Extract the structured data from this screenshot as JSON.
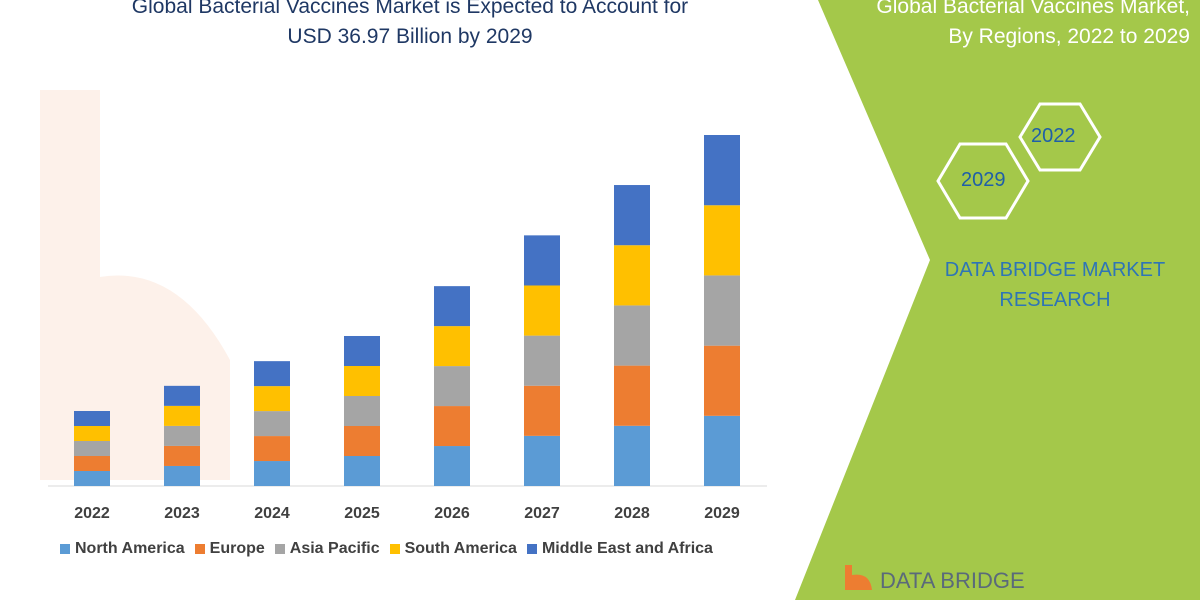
{
  "chart_data": {
    "type": "bar",
    "stacked": true,
    "title": "Global Bacterial Vaccines Market is Expected to Account for USD 36.97 Billion by 2029",
    "categories": [
      "2022",
      "2023",
      "2024",
      "2025",
      "2026",
      "2027",
      "2028",
      "2029"
    ],
    "series": [
      {
        "name": "North America",
        "color": "#5b9bd5",
        "values": [
          1.58,
          2.11,
          2.63,
          3.16,
          4.21,
          5.28,
          6.34,
          7.39
        ]
      },
      {
        "name": "Europe",
        "color": "#ed7d31",
        "values": [
          1.58,
          2.11,
          2.63,
          3.16,
          4.21,
          5.28,
          6.34,
          7.39
        ]
      },
      {
        "name": "Asia Pacific",
        "color": "#a5a5a5",
        "values": [
          1.58,
          2.11,
          2.63,
          3.16,
          4.21,
          5.28,
          6.34,
          7.4
        ]
      },
      {
        "name": "South America",
        "color": "#ffc000",
        "values": [
          1.58,
          2.11,
          2.63,
          3.16,
          4.21,
          5.28,
          6.34,
          7.39
        ]
      },
      {
        "name": "Middle East and Africa",
        "color": "#4472c4",
        "values": [
          1.58,
          2.11,
          2.63,
          3.16,
          4.21,
          5.28,
          6.34,
          7.4
        ]
      }
    ],
    "ylim": [
      0,
      36.97
    ],
    "grid": false,
    "legend": "bottom"
  },
  "title_line1": "Global Bacterial Vaccines Market is Expected to Account for",
  "title_line2": "USD 36.97 Billion by 2029",
  "side_title_line1": "Global Bacterial Vaccines Market,",
  "side_title_line2": "By Regions, 2022 to 2029",
  "hex_2022": "2022",
  "hex_2029": "2029",
  "brand_line1": "DATA BRIDGE MARKET",
  "brand_line2": "RESEARCH",
  "logo_text": "DATA BRIDGE",
  "colors": {
    "panel": "#a4c84a",
    "title": "#1f3864",
    "brand": "#2e75b6"
  }
}
